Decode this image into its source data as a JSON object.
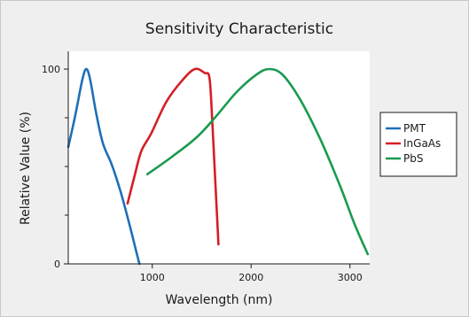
{
  "chart_data": {
    "type": "line",
    "title": "Sensitivity Characteristic",
    "xlabel": "Wavelength (nm)",
    "ylabel": "Relative Value (%)",
    "xlim": [
      150,
      3200
    ],
    "ylim": [
      0,
      100
    ],
    "xticks": [
      {
        "value": 1000,
        "label": "1000"
      },
      {
        "value": 2000,
        "label": "2000"
      },
      {
        "value": 3000,
        "label": "3000"
      }
    ],
    "yticks": [
      {
        "value": 0,
        "label": "0"
      },
      {
        "value": 100,
        "label": "100"
      }
    ],
    "legend_position": "right",
    "grid": false,
    "series": [
      {
        "name": "PMT",
        "color": "#1f6fb8",
        "points": [
          [
            150,
            60
          ],
          [
            220,
            76
          ],
          [
            290,
            94
          ],
          [
            330,
            100
          ],
          [
            370,
            95
          ],
          [
            430,
            78
          ],
          [
            500,
            62
          ],
          [
            590,
            51
          ],
          [
            680,
            37
          ],
          [
            760,
            22
          ],
          [
            830,
            8
          ],
          [
            870,
            0
          ]
        ]
      },
      {
        "name": "InGaAs",
        "color": "#d41f26",
        "points": [
          [
            750,
            31
          ],
          [
            820,
            45
          ],
          [
            890,
            58
          ],
          [
            990,
            67
          ],
          [
            1140,
            83
          ],
          [
            1300,
            94
          ],
          [
            1430,
            100
          ],
          [
            1530,
            98
          ],
          [
            1580,
            95
          ],
          [
            1610,
            70
          ],
          [
            1640,
            40
          ],
          [
            1670,
            10
          ]
        ]
      },
      {
        "name": "PbS",
        "color": "#1a9a50",
        "points": [
          [
            950,
            46
          ],
          [
            1200,
            55
          ],
          [
            1450,
            65
          ],
          [
            1650,
            76
          ],
          [
            1850,
            88
          ],
          [
            2050,
            97
          ],
          [
            2180,
            100
          ],
          [
            2320,
            97
          ],
          [
            2500,
            84
          ],
          [
            2700,
            64
          ],
          [
            2900,
            40
          ],
          [
            3050,
            20
          ],
          [
            3180,
            5
          ]
        ]
      }
    ]
  }
}
